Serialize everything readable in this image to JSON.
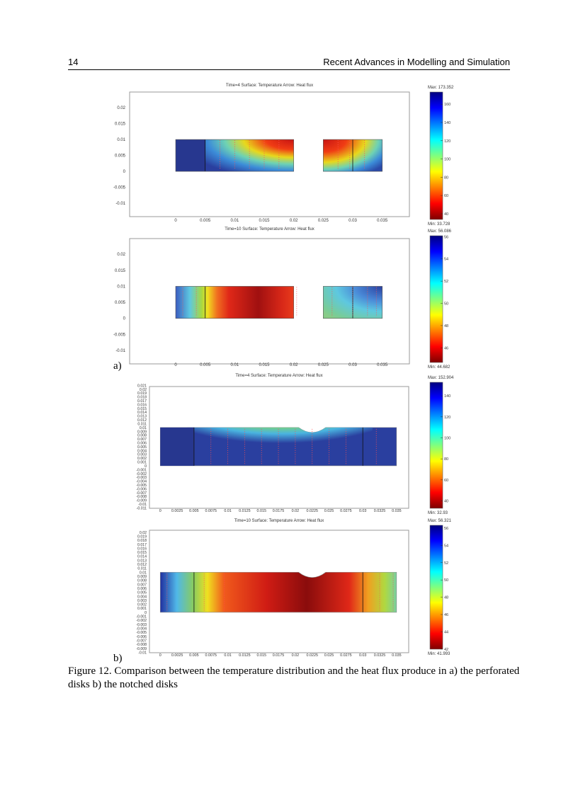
{
  "header": {
    "page_number": "14",
    "running_title": "Recent Advances in Modelling and Simulation"
  },
  "subfigure_labels": {
    "a": "a)",
    "b": "b)"
  },
  "caption": "Figure 12.  Comparison between the temperature distribution and the heat flux produce in a) the perforated disks b) the notched disks",
  "colormap": "jet",
  "chart_data": [
    {
      "type": "heatmap",
      "title": "Time=4    Surface: Temperature    Arrow: Heat flux",
      "max_label": "Max: 173.352",
      "min_label": "Min: 33.728",
      "min": 33.728,
      "max": 173.352,
      "colorbar_ticks": [
        "40",
        "60",
        "80",
        "100",
        "120",
        "140",
        "160"
      ],
      "xlim": [
        -0.0078,
        0.0396
      ],
      "ylim": [
        -0.0142,
        0.0249
      ],
      "xticks": [
        "0",
        "0.005",
        "0.01",
        "0.015",
        "0.02",
        "0.025",
        "0.03",
        "0.035"
      ],
      "yticks": [
        "0.02",
        "0.015",
        "0.01",
        "0.005",
        "0",
        "-0.005",
        "-0.01"
      ],
      "geometry": "perforated",
      "hot_spot": "top near hole"
    },
    {
      "type": "heatmap",
      "title": "Time=10    Surface: Temperature    Arrow: Heat flux",
      "max_label": "Max: 56.086",
      "min_label": "Min: 44.682",
      "min": 44.682,
      "max": 56.086,
      "colorbar_ticks": [
        "46",
        "48",
        "50",
        "52",
        "54",
        "56"
      ],
      "xlim": [
        -0.0078,
        0.0396
      ],
      "ylim": [
        -0.0142,
        0.0249
      ],
      "xticks": [
        "0",
        "0.005",
        "0.01",
        "0.015",
        "0.02",
        "0.025",
        "0.03",
        "0.035"
      ],
      "yticks": [
        "0.02",
        "0.015",
        "0.01",
        "0.005",
        "0",
        "-0.005",
        "-0.01"
      ],
      "geometry": "perforated",
      "hot_spot": "centre of left disk"
    },
    {
      "type": "heatmap",
      "title": "Time=4    Surface: Temperature    Arrow: Heat flux",
      "max_label": "Max: 152.904",
      "min_label": "Min: 32.93",
      "min": 32.93,
      "max": 152.904,
      "colorbar_ticks": [
        "40",
        "60",
        "80",
        "100",
        "120",
        "140"
      ],
      "xlim": [
        -0.0016,
        0.0368
      ],
      "ylim": [
        -0.0111,
        0.0207
      ],
      "xticks": [
        "0",
        "0.0025",
        "0.005",
        "0.0075",
        "0.01",
        "0.0125",
        "0.015",
        "0.0175",
        "0.02",
        "0.0225",
        "0.025",
        "0.0275",
        "0.03",
        "0.0325",
        "0.035"
      ],
      "yticks": [
        "0.021",
        "0.02",
        "0.019",
        "0.018",
        "0.017",
        "0.016",
        "0.015",
        "0.014",
        "0.013",
        "0.012",
        "0.011",
        "0.01",
        "0.009",
        "0.008",
        "0.007",
        "0.006",
        "0.005",
        "0.004",
        "0.003",
        "0.002",
        "0.001",
        "0",
        "-0.001",
        "-0.002",
        "-0.003",
        "-0.004",
        "-0.005",
        "-0.006",
        "-0.007",
        "-0.008",
        "-0.009",
        "-0.01",
        "-0.011"
      ],
      "geometry": "notched",
      "hot_spot": "top either side of notch"
    },
    {
      "type": "heatmap",
      "title": "Time=10    Surface: Temperature    Arrow: Heat flux",
      "max_label": "Max: 56.321",
      "min_label": "Min: 41.993",
      "min": 41.993,
      "max": 56.321,
      "colorbar_ticks": [
        "42",
        "44",
        "46",
        "48",
        "50",
        "52",
        "54",
        "56"
      ],
      "xlim": [
        -0.0016,
        0.0368
      ],
      "ylim": [
        -0.0101,
        0.0205
      ],
      "xticks": [
        "0",
        "0.0025",
        "0.005",
        "0.0075",
        "0.01",
        "0.0125",
        "0.015",
        "0.0175",
        "0.02",
        "0.0225",
        "0.025",
        "0.0275",
        "0.03",
        "0.0325",
        "0.035"
      ],
      "yticks": [
        "0.02",
        "0.019",
        "0.018",
        "0.017",
        "0.016",
        "0.015",
        "0.014",
        "0.013",
        "0.012",
        "0.011",
        "0.01",
        "0.009",
        "0.008",
        "0.007",
        "0.006",
        "0.005",
        "0.004",
        "0.003",
        "0.002",
        "0.001",
        "0",
        "-0.001",
        "-0.002",
        "-0.003",
        "-0.004",
        "-0.005",
        "-0.006",
        "-0.007",
        "-0.008",
        "-0.009",
        "-0.01"
      ],
      "geometry": "notched",
      "hot_spot": "centre under notch"
    }
  ]
}
